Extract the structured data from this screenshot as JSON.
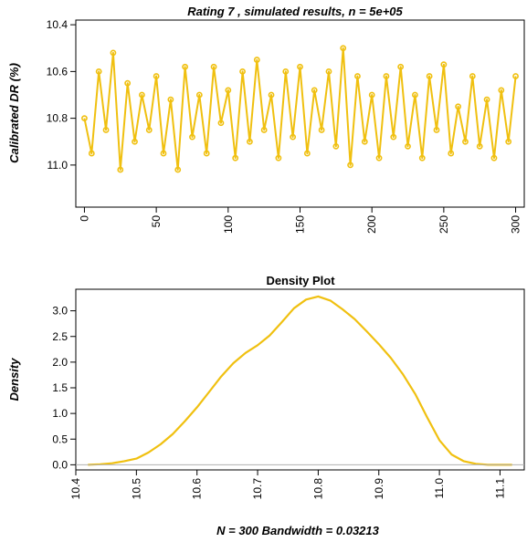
{
  "chart_data": [
    {
      "type": "line",
      "title": "Rating 7 , simulated results, n =  5e+05",
      "xlabel": "",
      "ylabel": "Calibrated DR (%)",
      "xlim": [
        -6,
        306
      ],
      "ylim": [
        11.18,
        10.38
      ],
      "y_reversed": true,
      "xticks": [
        "0",
        "50",
        "100",
        "150",
        "200",
        "250",
        "300"
      ],
      "yticks": [
        "10.4",
        "10.6",
        "10.8",
        "11.0"
      ],
      "grid": false,
      "color": "#f0c010",
      "x": [
        0,
        5,
        10,
        15,
        20,
        25,
        30,
        35,
        40,
        45,
        50,
        55,
        60,
        65,
        70,
        75,
        80,
        85,
        90,
        95,
        100,
        105,
        110,
        115,
        120,
        125,
        130,
        135,
        140,
        145,
        150,
        155,
        160,
        165,
        170,
        175,
        180,
        185,
        190,
        195,
        200,
        205,
        210,
        215,
        220,
        225,
        230,
        235,
        240,
        245,
        250,
        255,
        260,
        265,
        270,
        275,
        280,
        285,
        290,
        295,
        300
      ],
      "values": [
        10.8,
        10.95,
        10.6,
        10.85,
        10.52,
        11.02,
        10.65,
        10.9,
        10.7,
        10.85,
        10.62,
        10.95,
        10.72,
        11.02,
        10.58,
        10.88,
        10.7,
        10.95,
        10.58,
        10.82,
        10.68,
        10.97,
        10.6,
        10.9,
        10.55,
        10.85,
        10.7,
        10.97,
        10.6,
        10.88,
        10.58,
        10.95,
        10.68,
        10.85,
        10.6,
        10.92,
        10.5,
        11.0,
        10.62,
        10.9,
        10.7,
        10.97,
        10.62,
        10.88,
        10.58,
        10.92,
        10.7,
        10.97,
        10.62,
        10.85,
        10.57,
        10.95,
        10.75,
        10.9,
        10.62,
        10.92,
        10.72,
        10.97,
        10.68,
        10.9,
        10.62
      ]
    },
    {
      "type": "line",
      "title": "Density Plot",
      "xlabel": "N = 300   Bandwidth = 0.03213",
      "ylabel": "Density",
      "xlim": [
        10.4,
        11.14
      ],
      "ylim": [
        -0.1,
        3.42
      ],
      "xticks": [
        "10.4",
        "10.5",
        "10.6",
        "10.7",
        "10.8",
        "10.9",
        "11.0",
        "11.1"
      ],
      "yticks": [
        "0.0",
        "0.5",
        "1.0",
        "1.5",
        "2.0",
        "2.5",
        "3.0"
      ],
      "grid": false,
      "color": "#f0c010",
      "x": [
        10.42,
        10.44,
        10.46,
        10.48,
        10.5,
        10.52,
        10.54,
        10.56,
        10.58,
        10.6,
        10.62,
        10.64,
        10.66,
        10.68,
        10.7,
        10.72,
        10.74,
        10.76,
        10.78,
        10.8,
        10.82,
        10.84,
        10.86,
        10.88,
        10.9,
        10.92,
        10.94,
        10.96,
        10.98,
        11.0,
        11.02,
        11.04,
        11.06,
        11.08,
        11.1,
        11.12
      ],
      "values": [
        0.0,
        0.01,
        0.03,
        0.07,
        0.12,
        0.24,
        0.4,
        0.6,
        0.85,
        1.12,
        1.42,
        1.72,
        1.98,
        2.18,
        2.33,
        2.52,
        2.78,
        3.05,
        3.22,
        3.28,
        3.2,
        3.03,
        2.84,
        2.6,
        2.35,
        2.08,
        1.76,
        1.38,
        0.92,
        0.48,
        0.2,
        0.07,
        0.02,
        0.0,
        0.0,
        0.0
      ]
    }
  ]
}
